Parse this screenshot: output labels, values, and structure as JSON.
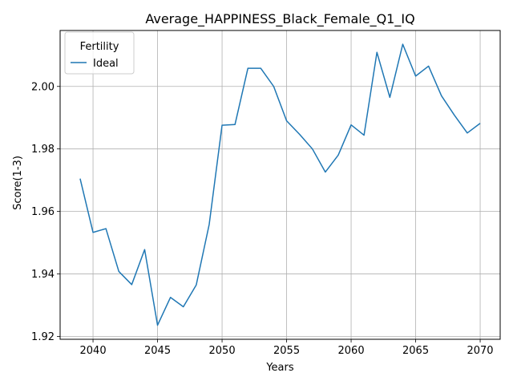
{
  "chart_data": {
    "type": "line",
    "title": "Average_HAPPINESS_Black_Female_Q1_IQ",
    "xlabel": "Years",
    "ylabel": "Score(1-3)",
    "xlim": [
      2037.45,
      2071.55
    ],
    "ylim": [
      1.9191,
      2.0179
    ],
    "xticks": [
      2040,
      2045,
      2050,
      2055,
      2060,
      2065,
      2070
    ],
    "xtick_labels": [
      "2040",
      "2045",
      "2050",
      "2055",
      "2060",
      "2065",
      "2070"
    ],
    "yticks": [
      1.92,
      1.94,
      1.96,
      1.98,
      2.0
    ],
    "ytick_labels": [
      "1.92",
      "1.94",
      "1.96",
      "1.98",
      "2.00"
    ],
    "grid": true,
    "legend": {
      "title": "Fertility",
      "position": "top-left"
    },
    "series": [
      {
        "name": "Ideal",
        "color": "#1f77b4",
        "x": [
          2039,
          2040,
          2041,
          2042,
          2043,
          2044,
          2045,
          2046,
          2047,
          2048,
          2049,
          2050,
          2051,
          2052,
          2053,
          2054,
          2055,
          2056,
          2057,
          2058,
          2059,
          2060,
          2061,
          2062,
          2063,
          2064,
          2065,
          2066,
          2067,
          2068,
          2069,
          2070
        ],
        "y": [
          1.9705,
          1.9533,
          1.9545,
          1.9408,
          1.9366,
          1.9478,
          1.9236,
          1.9325,
          1.9295,
          1.9365,
          1.9558,
          1.9876,
          1.9878,
          2.0058,
          2.0058,
          2.0,
          1.989,
          1.9847,
          1.98,
          1.9726,
          1.978,
          1.9877,
          1.9844,
          2.0109,
          1.9965,
          2.0135,
          2.0033,
          2.0065,
          1.997,
          1.9908,
          1.9851,
          1.9882
        ]
      }
    ]
  }
}
